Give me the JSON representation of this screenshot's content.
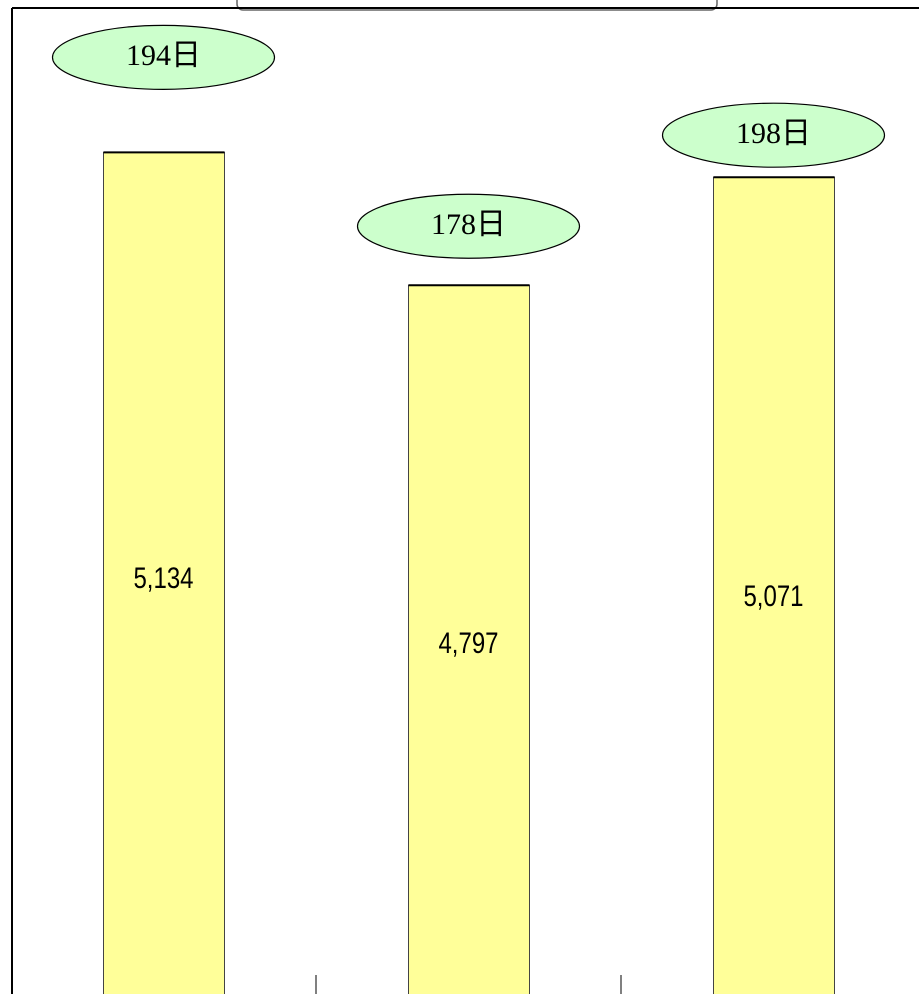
{
  "chart_data": {
    "type": "bar",
    "values": [
      5134,
      4797,
      5071
    ],
    "value_labels": [
      "5,134",
      "4,797",
      "5,071"
    ],
    "annotations": [
      "194日",
      "178日",
      "198日"
    ],
    "color": "#ffff99",
    "annotation_color": "#ccffcc",
    "ylim": [
      3000,
      5500
    ]
  }
}
